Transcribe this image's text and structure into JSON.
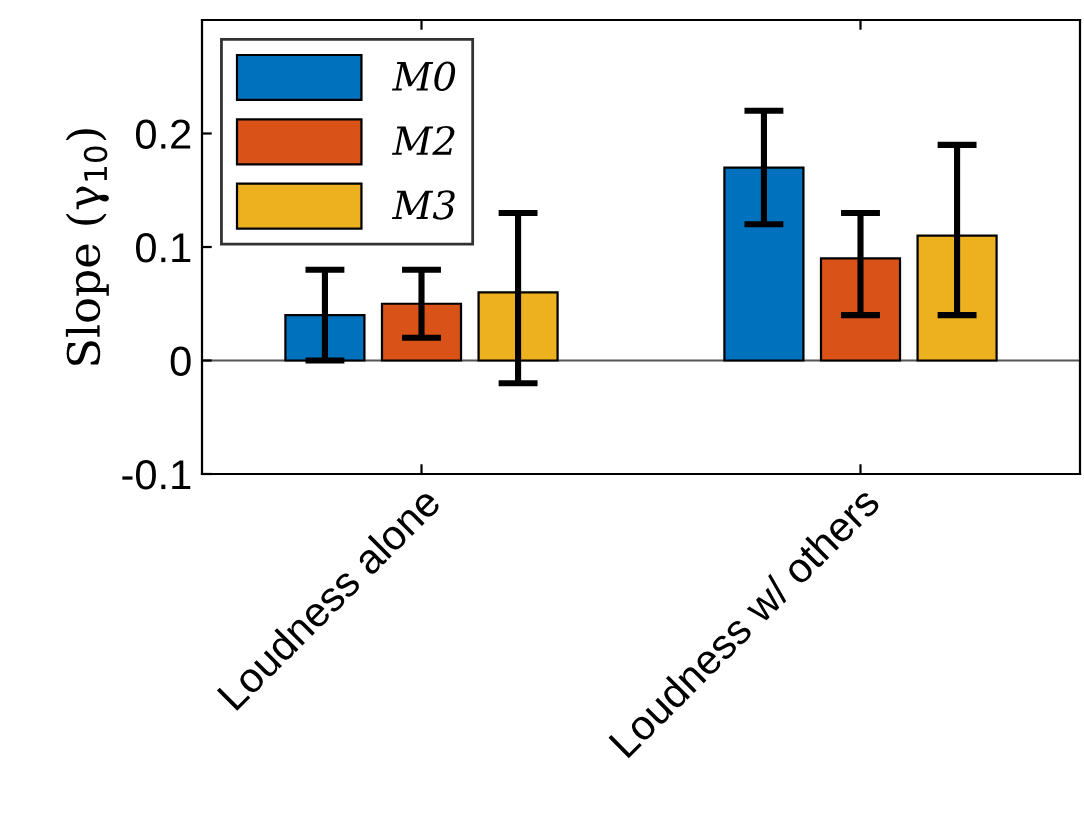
{
  "chart_data": {
    "type": "bar",
    "ylabel": "Slope (γ$_{10}$)",
    "categories": [
      "Loudness alone",
      "Loudness w/ others"
    ],
    "series": [
      {
        "name": "M0",
        "color": "#0072bd",
        "values": [
          0.04,
          0.17
        ],
        "errors": [
          [
            0,
            0.08
          ],
          [
            0.12,
            0.22
          ]
        ]
      },
      {
        "name": "M2",
        "color": "#d95319",
        "values": [
          0.05,
          0.09
        ],
        "errors": [
          [
            0.02,
            0.08
          ],
          [
            0.04,
            0.13
          ]
        ]
      },
      {
        "name": "M3",
        "color": "#edb120",
        "values": [
          0.06,
          0.11
        ],
        "errors": [
          [
            -0.02,
            0.13
          ],
          [
            0.04,
            0.19
          ]
        ]
      }
    ],
    "ylim": [
      -0.1,
      0.3
    ],
    "yticks": [
      -0.1,
      0,
      0.1,
      0.2
    ],
    "ref_lines": [
      {
        "axis": "y",
        "value": 0,
        "color": "#555555"
      }
    ],
    "legend": "top left",
    "grid": false
  }
}
